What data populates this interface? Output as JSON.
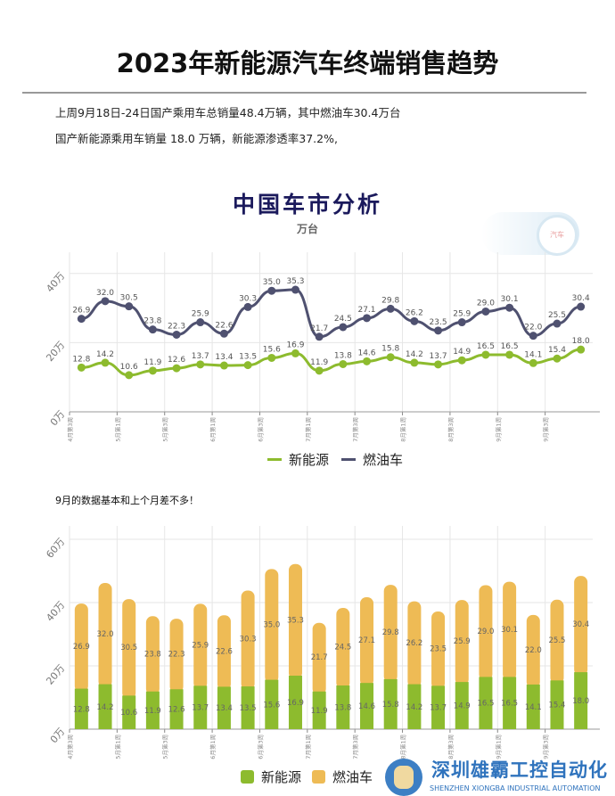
{
  "header": {
    "title": "2023年新能源汽车终端销售趋势",
    "line1": "上周9月18日-24日国产乘用车总销量48.4万辆，其中燃油车30.4万台",
    "line2": "国产新能源乘用车销量 18.0 万辆，新能源渗透率37.2%,"
  },
  "chart_title": "中国车市分析",
  "chart_unit": "万台",
  "badge_text": "汽车",
  "note": "9月的数据基本和上个月差不多！",
  "colors": {
    "nev": "#8dbb2e",
    "fuel": "#4f5170",
    "fuel_bar": "#eebb55"
  },
  "banner": {
    "name": "深圳雄霸工控自动化",
    "sub": "SHENZHEN XIONGBA INDUSTRIAL AUTOMATION"
  },
  "chart_data": [
    {
      "type": "line",
      "ylabels": [
        "0万",
        "20万",
        "40万"
      ],
      "ylim": [
        0,
        46
      ],
      "grid": true,
      "legend": "bottom",
      "xticks": [
        "4月第3周",
        "5月第1周",
        "5月第3周",
        "6月第1周",
        "6月第3周",
        "7月第1周",
        "7月第3周",
        "8月第1周",
        "8月第3周",
        "9月第1周",
        "9月第3周"
      ],
      "series": [
        {
          "name": "新能源",
          "values": [
            12.8,
            14.2,
            10.6,
            11.9,
            12.6,
            13.7,
            13.4,
            13.5,
            15.6,
            16.9,
            11.9,
            13.8,
            14.6,
            15.8,
            14.2,
            13.7,
            14.9,
            16.5,
            16.5,
            14.1,
            15.4,
            18.0
          ]
        },
        {
          "name": "燃油车",
          "values": [
            26.9,
            32.0,
            30.5,
            23.8,
            22.3,
            25.9,
            22.6,
            30.3,
            35.0,
            35.3,
            21.7,
            24.5,
            27.1,
            29.8,
            26.2,
            23.5,
            25.9,
            29.0,
            30.1,
            22.0,
            25.5,
            30.4
          ]
        }
      ]
    },
    {
      "type": "bar",
      "stacked": true,
      "ylabels": [
        "0万",
        "20万",
        "40万",
        "60万"
      ],
      "ylim": [
        0,
        60
      ],
      "grid": true,
      "legend": "bottom",
      "xticks": [
        "4月第3周",
        "5月第1周",
        "5月第3周",
        "6月第1周",
        "6月第3周",
        "7月第1周",
        "7月第3周",
        "8月第1周",
        "8月第3周",
        "9月第1周",
        "9月第3周"
      ],
      "series": [
        {
          "name": "新能源",
          "values": [
            12.8,
            14.2,
            10.6,
            11.9,
            12.6,
            13.7,
            13.4,
            13.5,
            15.6,
            16.9,
            11.9,
            13.8,
            14.6,
            15.8,
            14.2,
            13.7,
            14.9,
            16.5,
            16.5,
            14.1,
            15.4,
            18.0
          ]
        },
        {
          "name": "燃油车",
          "values": [
            26.9,
            32.0,
            30.5,
            23.8,
            22.3,
            25.9,
            22.6,
            30.3,
            35.0,
            35.3,
            21.7,
            24.5,
            27.1,
            29.8,
            26.2,
            23.5,
            25.9,
            29.0,
            30.1,
            22.0,
            25.5,
            30.4
          ]
        }
      ]
    }
  ]
}
